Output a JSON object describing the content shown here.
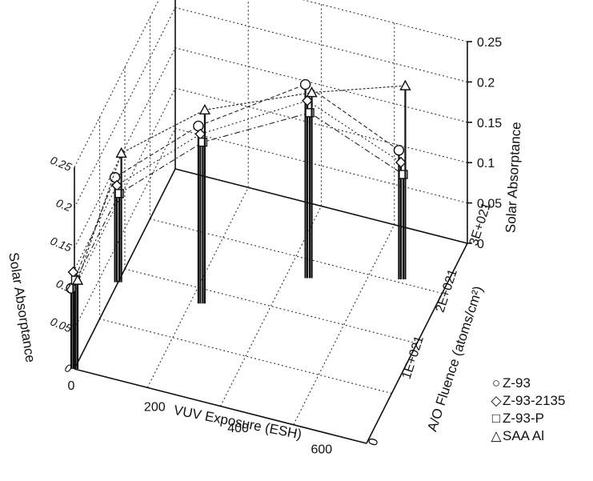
{
  "chart_data": {
    "type": "scatter",
    "subtype": "3d-stem",
    "title": "",
    "axes": {
      "z": {
        "label": "Solar Absorptance",
        "range": [
          0,
          0.25
        ],
        "ticks": [
          "0",
          "0.05",
          "0.1",
          "0.15",
          "0.2",
          "0.25"
        ]
      },
      "z_left_ticks": [
        "0",
        "0.05",
        "0.1",
        "0.15",
        "0.2",
        "0.25"
      ],
      "x": {
        "label": "VUV Exposure (ESH)",
        "range": [
          0,
          700
        ],
        "ticks": [
          "0",
          "200",
          "400",
          "600"
        ]
      },
      "y": {
        "label": "A/O Fluence (atoms/cm²)",
        "range": [
          0,
          3e+21
        ],
        "ticks": [
          "0",
          "1E+021",
          "2E+021",
          "3E+021"
        ]
      }
    },
    "grid": true,
    "legend_position": "bottom-right",
    "series": [
      {
        "name": "Z-93",
        "symbol": "○",
        "points": [
          {
            "x": 0,
            "y": 0,
            "z": 0.1
          },
          {
            "x": 0,
            "y": 1.3e+21,
            "z": 0.13
          },
          {
            "x": 200,
            "y": 1.3e+21,
            "z": 0.22
          },
          {
            "x": 400,
            "y": 2e+21,
            "z": 0.24
          },
          {
            "x": 600,
            "y": 2.3e+21,
            "z": 0.16
          }
        ]
      },
      {
        "name": "Z-93-2135",
        "symbol": "◇",
        "points": [
          {
            "x": 0,
            "y": 0,
            "z": 0.12
          },
          {
            "x": 0,
            "y": 1.3e+21,
            "z": 0.12
          },
          {
            "x": 200,
            "y": 1.3e+21,
            "z": 0.21
          },
          {
            "x": 400,
            "y": 2e+21,
            "z": 0.22
          },
          {
            "x": 600,
            "y": 2.3e+21,
            "z": 0.145
          }
        ]
      },
      {
        "name": "Z-93-P",
        "symbol": "□",
        "points": [
          {
            "x": 0,
            "y": 0,
            "z": 0.11
          },
          {
            "x": 0,
            "y": 1.3e+21,
            "z": 0.11
          },
          {
            "x": 200,
            "y": 1.3e+21,
            "z": 0.2
          },
          {
            "x": 400,
            "y": 2e+21,
            "z": 0.205
          },
          {
            "x": 600,
            "y": 2.3e+21,
            "z": 0.13
          }
        ]
      },
      {
        "name": "SAA Al",
        "symbol": "△",
        "points": [
          {
            "x": 0,
            "y": 0,
            "z": 0.11
          },
          {
            "x": 0,
            "y": 1.3e+21,
            "z": 0.16
          },
          {
            "x": 200,
            "y": 1.3e+21,
            "z": 0.24
          },
          {
            "x": 400,
            "y": 2e+21,
            "z": 0.23
          },
          {
            "x": 600,
            "y": 2.3e+21,
            "z": 0.24
          }
        ]
      }
    ]
  }
}
